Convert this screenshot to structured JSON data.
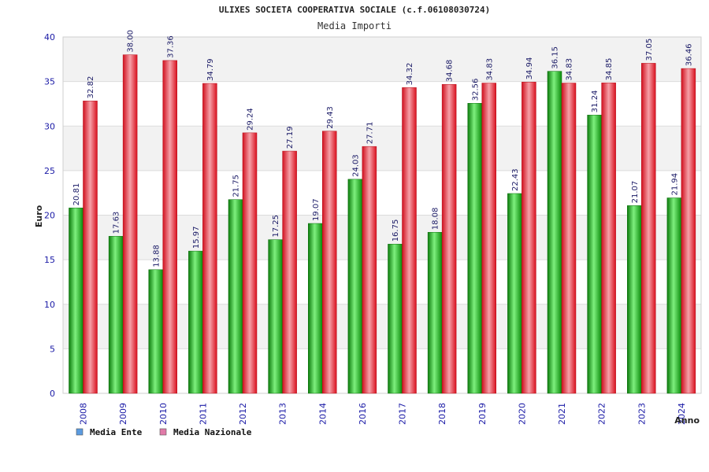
{
  "chart_data": {
    "type": "bar",
    "title": "ULIXES SOCIETA COOPERATIVA SOCIALE (c.f.06108030724)",
    "subtitle": "Media Importi",
    "xlabel": "Anno",
    "ylabel": "Euro",
    "ylim": [
      0,
      40
    ],
    "yticks": [
      0,
      5,
      10,
      15,
      20,
      25,
      30,
      35,
      40
    ],
    "grid": true,
    "legend_position": "bottom-left",
    "categories": [
      "2008",
      "2009",
      "2010",
      "2011",
      "2012",
      "2013",
      "2014",
      "2016",
      "2017",
      "2018",
      "2019",
      "2020",
      "2021",
      "2022",
      "2023",
      "2024"
    ],
    "series": [
      {
        "name": "Media Ente",
        "bar_color": "#22bb22",
        "legend_color": "#5b9be0",
        "values": [
          20.81,
          17.63,
          13.88,
          15.97,
          21.75,
          17.25,
          19.07,
          24.03,
          16.75,
          18.08,
          32.56,
          22.43,
          36.15,
          31.24,
          21.07,
          21.94
        ]
      },
      {
        "name": "Media Nazionale",
        "bar_color": "#ee2233",
        "legend_color": "#e07aa8",
        "values": [
          32.82,
          38.0,
          37.36,
          34.79,
          29.24,
          27.19,
          29.43,
          27.71,
          34.32,
          34.68,
          34.83,
          34.94,
          34.83,
          34.85,
          37.05,
          36.46
        ]
      }
    ],
    "data_labels": [
      [
        "20.81",
        "17.63",
        "13.88",
        "15.97",
        "21.75",
        "17.25",
        "19.07",
        "24.03",
        "16.75",
        "18.08",
        "32.56",
        "22.43",
        "36.15",
        "31.24",
        "21.07",
        "21.94"
      ],
      [
        "32.82",
        "38.00",
        "37.36",
        "34.79",
        "29.24",
        "27.19",
        "29.43",
        "27.71",
        "34.32",
        "34.68",
        "34.83",
        "34.94",
        "34.83",
        "34.85",
        "37.05",
        "36.46"
      ]
    ]
  }
}
